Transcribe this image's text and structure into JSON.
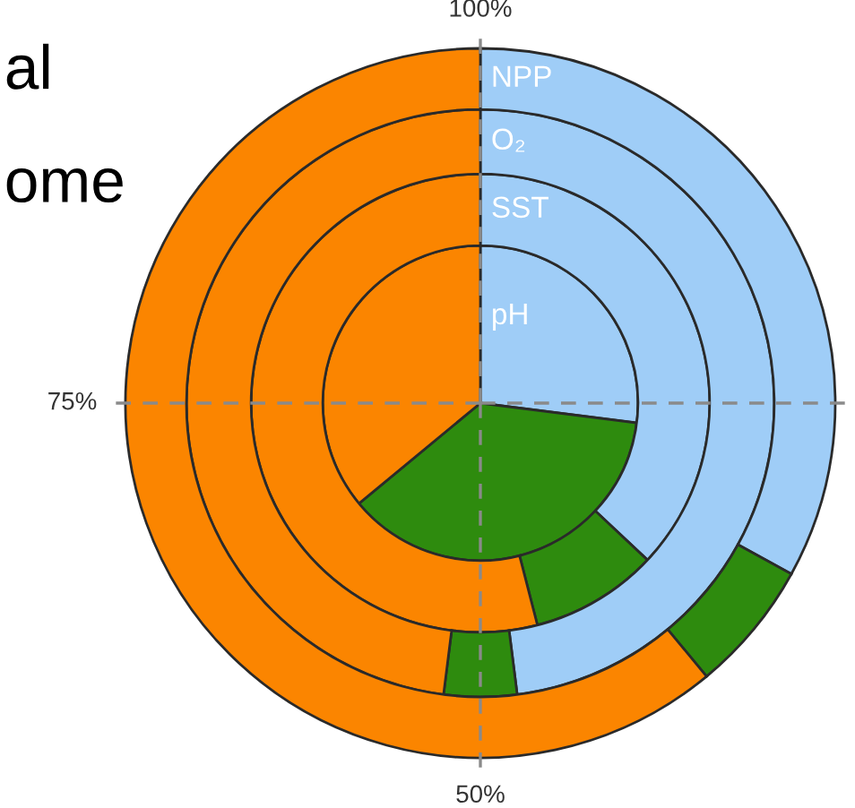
{
  "chart_data": {
    "type": "pie",
    "categories": [
      null,
      null,
      null
    ],
    "colors": [
      "#9fcdf7",
      "#2e8b0e",
      "#fb8500"
    ],
    "series": [
      {
        "name": "pH",
        "values": [
          27,
          37,
          36
        ]
      },
      {
        "name": "SST",
        "values": [
          37,
          9,
          54
        ]
      },
      {
        "name": "O₂",
        "values": [
          48,
          4,
          48
        ]
      },
      {
        "name": "NPP",
        "values": [
          33,
          6,
          61
        ]
      }
    ],
    "grid": true,
    "annotations": [
      "al",
      "ome",
      "100%",
      "75%",
      "50%"
    ]
  }
}
